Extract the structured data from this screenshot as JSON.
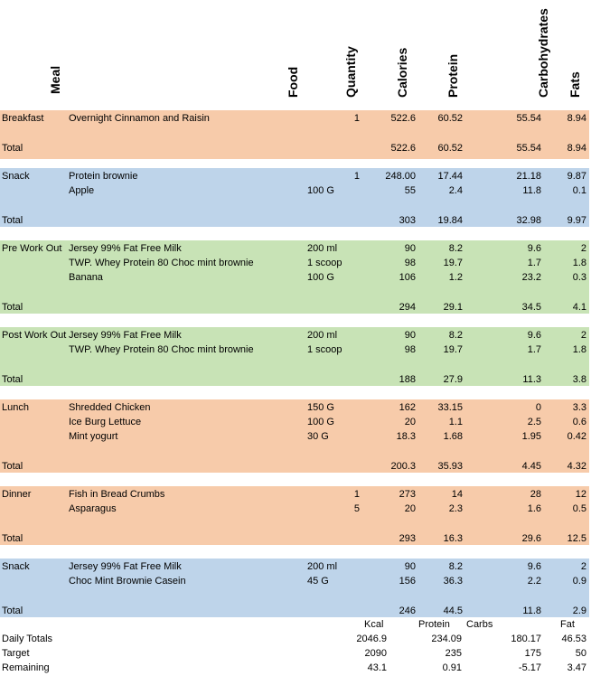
{
  "headers": {
    "meal": "Meal",
    "food": "Food",
    "quantity": "Quantity",
    "calories": "Calories",
    "protein": "Protein",
    "carbohydrates": "Carbohydrates",
    "fats": "Fats"
  },
  "colors": {
    "orange": "#f7cbaa",
    "blue": "#bed4ea",
    "green": "#c8e3b6"
  },
  "meals": [
    {
      "color": "orange",
      "items": [
        {
          "meal": "Breakfast",
          "food": "Overnight Cinnamon and Raisin",
          "unit": "",
          "qty": "1",
          "cal": "522.6",
          "pro": "60.52",
          "carb": "55.54",
          "fat": "8.94"
        }
      ],
      "total": {
        "label": "Total",
        "cal": "522.6",
        "pro": "60.52",
        "carb": "55.54",
        "fat": "8.94"
      }
    },
    {
      "color": "blue",
      "items": [
        {
          "meal": "Snack",
          "food": "Protein brownie",
          "unit": "",
          "qty": "1",
          "cal": "248.00",
          "pro": "17.44",
          "carb": "21.18",
          "fat": "9.87"
        },
        {
          "meal": "",
          "food": "Apple",
          "unit": "100 G",
          "qty": "",
          "cal": "55",
          "pro": "2.4",
          "carb": "11.8",
          "fat": "0.1"
        }
      ],
      "total": {
        "label": "Total",
        "cal": "303",
        "pro": "19.84",
        "carb": "32.98",
        "fat": "9.97"
      }
    },
    {
      "color": "green",
      "items": [
        {
          "meal": "Pre Work Out",
          "food": "Jersey 99% Fat Free Milk",
          "unit": "200 ml",
          "qty": "",
          "cal": "90",
          "pro": "8.2",
          "carb": "9.6",
          "fat": "2"
        },
        {
          "meal": "",
          "food": "TWP. Whey Protein 80 Choc mint brownie",
          "unit": "1 scoop",
          "qty": "",
          "cal": "98",
          "pro": "19.7",
          "carb": "1.7",
          "fat": "1.8"
        },
        {
          "meal": "",
          "food": "Banana",
          "unit": "100 G",
          "qty": "",
          "cal": "106",
          "pro": "1.2",
          "carb": "23.2",
          "fat": "0.3"
        }
      ],
      "total": {
        "label": "Total",
        "cal": "294",
        "pro": "29.1",
        "carb": "34.5",
        "fat": "4.1"
      }
    },
    {
      "color": "green",
      "items": [
        {
          "meal": "Post Work Out",
          "food": "Jersey 99% Fat Free Milk",
          "unit": "200 ml",
          "qty": "",
          "cal": "90",
          "pro": "8.2",
          "carb": "9.6",
          "fat": "2"
        },
        {
          "meal": "",
          "food": "TWP. Whey Protein 80 Choc mint brownie",
          "unit": "1 scoop",
          "qty": "",
          "cal": "98",
          "pro": "19.7",
          "carb": "1.7",
          "fat": "1.8"
        }
      ],
      "total": {
        "label": "Total",
        "cal": "188",
        "pro": "27.9",
        "carb": "11.3",
        "fat": "3.8"
      }
    },
    {
      "color": "orange",
      "items": [
        {
          "meal": "Lunch",
          "food": "Shredded Chicken",
          "unit": "150 G",
          "qty": "",
          "cal": "162",
          "pro": "33.15",
          "carb": "0",
          "fat": "3.3"
        },
        {
          "meal": "",
          "food": "Ice Burg Lettuce",
          "unit": "100 G",
          "qty": "",
          "cal": "20",
          "pro": "1.1",
          "carb": "2.5",
          "fat": "0.6"
        },
        {
          "meal": "",
          "food": "Mint yogurt",
          "unit": "30 G",
          "qty": "",
          "cal": "18.3",
          "pro": "1.68",
          "carb": "1.95",
          "fat": "0.42"
        }
      ],
      "total": {
        "label": "Total",
        "cal": "200.3",
        "pro": "35.93",
        "carb": "4.45",
        "fat": "4.32"
      }
    },
    {
      "color": "orange",
      "items": [
        {
          "meal": "Dinner",
          "food": "Fish in Bread Crumbs",
          "unit": "",
          "qty": "1",
          "cal": "273",
          "pro": "14",
          "carb": "28",
          "fat": "12"
        },
        {
          "meal": "",
          "food": "Asparagus",
          "unit": "",
          "qty": "5",
          "cal": "20",
          "pro": "2.3",
          "carb": "1.6",
          "fat": "0.5"
        }
      ],
      "total": {
        "label": "Total",
        "cal": "293",
        "pro": "16.3",
        "carb": "29.6",
        "fat": "12.5"
      }
    },
    {
      "color": "blue",
      "items": [
        {
          "meal": "Snack",
          "food": "Jersey 99% Fat Free Milk",
          "unit": "200 ml",
          "qty": "",
          "cal": "90",
          "pro": "8.2",
          "carb": "9.6",
          "fat": "2"
        },
        {
          "meal": "",
          "food": "Choc Mint Brownie Casein",
          "unit": "45 G",
          "qty": "",
          "cal": "156",
          "pro": "36.3",
          "carb": "2.2",
          "fat": "0.9"
        }
      ],
      "total": {
        "label": "Total",
        "cal": "246",
        "pro": "44.5",
        "carb": "11.8",
        "fat": "2.9"
      }
    }
  ],
  "summary": {
    "labels": {
      "kcal": "Kcal",
      "protein": "Protein",
      "carbs": "Carbs",
      "fat": "Fat"
    },
    "rows": [
      {
        "label": "Daily Totals",
        "kcal": "2046.9",
        "protein": "234.09",
        "carbs": "180.17",
        "fat": "46.53"
      },
      {
        "label": "Target",
        "kcal": "2090",
        "protein": "235",
        "carbs": "175",
        "fat": "50"
      },
      {
        "label": "Remaining",
        "kcal": "43.1",
        "protein": "0.91",
        "carbs": "-5.17",
        "fat": "3.47"
      }
    ]
  }
}
